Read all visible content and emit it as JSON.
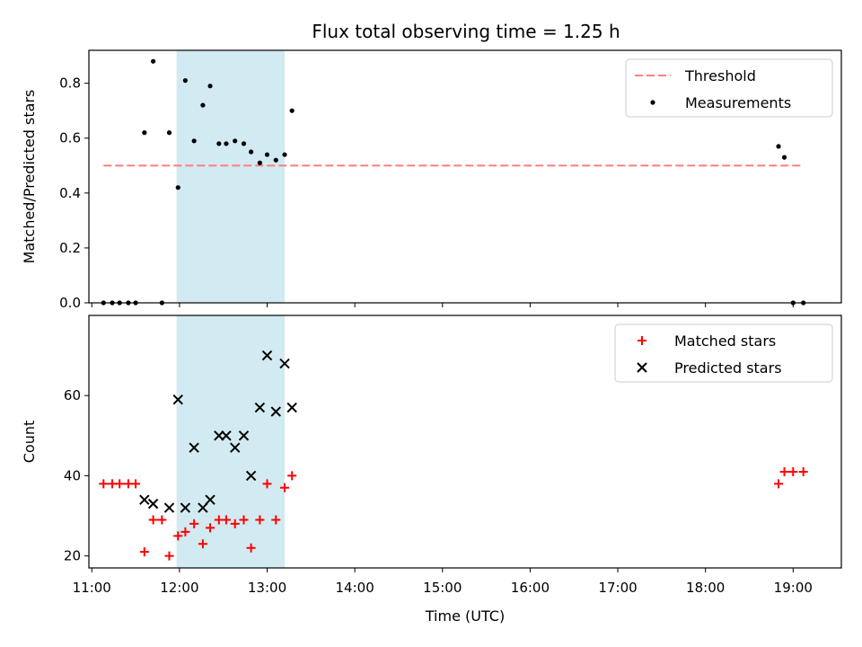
{
  "title": "Flux total observing time = 1.25 h",
  "colors": {
    "threshold": "#ff7f7f",
    "measurements": "#000000",
    "matched": "#ff0000",
    "predicted": "#000000",
    "window": "#add8e6"
  },
  "chart_data": [
    {
      "type": "scatter",
      "ylabel": "Matched/Predicted stars",
      "xlabel": "",
      "xlim": [
        "10:58",
        "19:33"
      ],
      "ylim": [
        0,
        0.92
      ],
      "yticks": [
        "0.0",
        "0.2",
        "0.4",
        "0.6",
        "0.8"
      ],
      "grid": false,
      "legend_position": "top-right",
      "observing_window": {
        "start": "11:58",
        "end": "13:12"
      },
      "threshold": {
        "name": "Threshold",
        "y": 0.5,
        "x": [
          "11:08",
          "19:05"
        ]
      },
      "series": [
        {
          "name": "Measurements",
          "x": [
            "11:08",
            "11:14",
            "11:19",
            "11:25",
            "11:30",
            "11:36",
            "11:42",
            "11:48",
            "11:53",
            "11:59",
            "12:04",
            "12:10",
            "12:16",
            "12:21",
            "12:27",
            "12:32",
            "12:38",
            "12:44",
            "12:49",
            "12:55",
            "13:00",
            "13:06",
            "13:12",
            "13:17",
            "18:50",
            "18:54",
            "19:00",
            "19:07"
          ],
          "y": [
            0.0,
            0.0,
            0.0,
            0.0,
            0.0,
            0.62,
            0.88,
            0.0,
            0.62,
            0.42,
            0.81,
            0.59,
            0.72,
            0.79,
            0.58,
            0.58,
            0.59,
            0.58,
            0.55,
            0.51,
            0.54,
            0.52,
            0.54,
            0.7,
            0.57,
            0.53,
            0.0,
            0.0
          ]
        }
      ]
    },
    {
      "type": "scatter",
      "ylabel": "Count",
      "xlabel": "Time (UTC)",
      "xlim": [
        "10:58",
        "19:33"
      ],
      "ylim": [
        17,
        80
      ],
      "yticks": [
        "20",
        "40",
        "60"
      ],
      "xticks": [
        "11:00",
        "12:00",
        "13:00",
        "14:00",
        "15:00",
        "16:00",
        "17:00",
        "18:00",
        "19:00"
      ],
      "grid": false,
      "legend_position": "top-right",
      "observing_window": {
        "start": "11:58",
        "end": "13:12"
      },
      "series": [
        {
          "name": "Matched stars",
          "marker": "plus",
          "x": [
            "11:08",
            "11:14",
            "11:19",
            "11:25",
            "11:30",
            "11:36",
            "11:42",
            "11:48",
            "11:53",
            "11:59",
            "12:04",
            "12:10",
            "12:16",
            "12:21",
            "12:27",
            "12:32",
            "12:38",
            "12:44",
            "12:49",
            "12:55",
            "13:00",
            "13:06",
            "13:12",
            "13:17",
            "18:50",
            "18:54",
            "19:00",
            "19:07"
          ],
          "y": [
            38,
            38,
            38,
            38,
            38,
            21,
            29,
            29,
            20,
            25,
            26,
            28,
            23,
            27,
            29,
            29,
            28,
            29,
            22,
            29,
            38,
            29,
            37,
            40,
            38,
            41,
            41,
            41
          ]
        },
        {
          "name": "Predicted stars",
          "marker": "x",
          "x": [
            "11:36",
            "11:42",
            "11:53",
            "11:59",
            "12:04",
            "12:10",
            "12:16",
            "12:21",
            "12:27",
            "12:32",
            "12:38",
            "12:44",
            "12:49",
            "12:55",
            "13:00",
            "13:06",
            "13:12",
            "13:17"
          ],
          "y": [
            34,
            33,
            32,
            59,
            32,
            47,
            32,
            34,
            50,
            50,
            47,
            50,
            40,
            57,
            70,
            56,
            68,
            57
          ]
        }
      ]
    }
  ]
}
